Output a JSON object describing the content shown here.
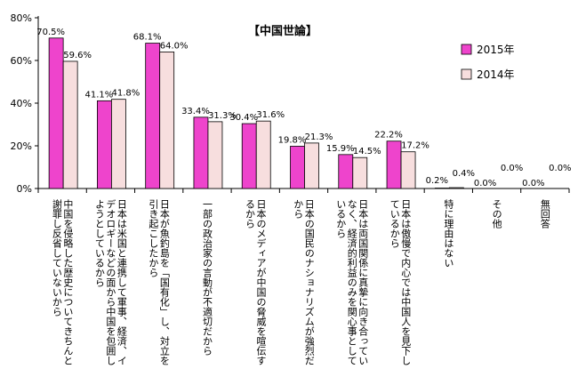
{
  "chart_data": {
    "type": "bar",
    "title": "【中国世論】",
    "categories": [
      "中国を侵略した歴史についてきちんと謝罪し反省していないから",
      "日本は米国と連携して軍事、経済、イデオロギーなどの面から中国を包囲しようとしているから",
      "日本が魚釣島を「国有化」し、対立を引き起こしたから",
      "一部の政治家の言動が不適切だから",
      "日本のメディアが中国の脅威を喧伝するから",
      "日本の国民のナショナリズムが強烈だから",
      "日本は両国関係に真摯に向き合っていなく、経済的利益のみを関心事としているから",
      "日本は傲慢で内心では中国人を見下しているから",
      "特に理由はない",
      "その他",
      "無回答"
    ],
    "series": [
      {
        "name": "2015年",
        "color": "#ee44cc",
        "values": [
          70.5,
          41.1,
          68.1,
          33.4,
          30.4,
          19.8,
          15.9,
          22.2,
          0.2,
          0.0,
          0.0
        ]
      },
      {
        "name": "2014年",
        "color": "#f7dede",
        "values": [
          59.6,
          41.8,
          64.0,
          31.3,
          31.6,
          21.3,
          14.5,
          17.2,
          0.4,
          0.0,
          0.0
        ]
      }
    ],
    "data_labels": [
      [
        "70.5%",
        "41.1%",
        "68.1%",
        "33.4%",
        "30.4%",
        "19.8%",
        "15.9%",
        "22.2%",
        "0.2%",
        "0.0%",
        "0.0%"
      ],
      [
        "59.6%",
        "41.8%",
        "64.0%",
        "31.3%",
        "31.6%",
        "21.3%",
        "14.5%",
        "17.2%",
        "0.4%",
        "0.0%",
        "0.0%"
      ]
    ],
    "ytick_labels": [
      "0%",
      "20%",
      "40%",
      "60%",
      "80%"
    ],
    "ylim": [
      0,
      80
    ],
    "yticks": [
      0,
      20,
      40,
      60,
      80
    ],
    "grid": false,
    "legend_position": "top-right"
  }
}
